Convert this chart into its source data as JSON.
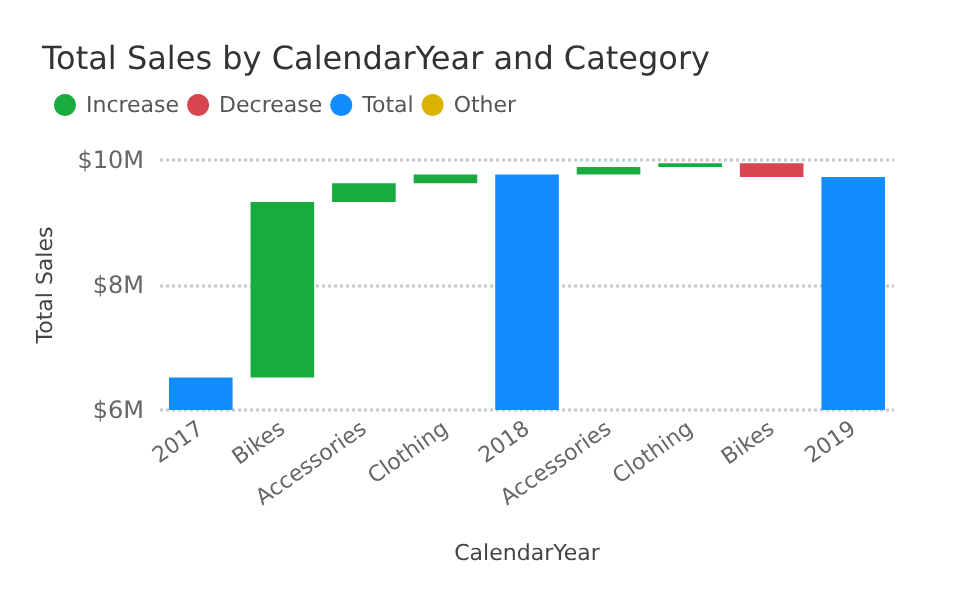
{
  "chart_data": {
    "type": "bar",
    "title": "Total Sales by CalendarYear and Category",
    "xlabel": "CalendarYear",
    "ylabel": "Total Sales",
    "categories": [
      "2017",
      "Bikes",
      "Accessories",
      "Clothing",
      "2018",
      "Accessories",
      "Clothing",
      "Bikes",
      "2019"
    ],
    "series": [
      {
        "name": "Increase",
        "color": "#1aab40",
        "values": [
          null,
          2.81,
          0.3,
          0.14,
          null,
          0.12,
          0.06,
          null,
          null
        ],
        "base": [
          null,
          6.52,
          9.33,
          9.63,
          null,
          9.77,
          9.89,
          null,
          null
        ]
      },
      {
        "name": "Decrease",
        "color": "#d64550",
        "values": [
          null,
          null,
          null,
          null,
          null,
          null,
          null,
          -0.22,
          null
        ],
        "base": [
          null,
          null,
          null,
          null,
          null,
          null,
          null,
          9.95,
          null
        ]
      },
      {
        "name": "Total",
        "color": "#118dff",
        "values": [
          6.52,
          null,
          null,
          null,
          9.77,
          null,
          null,
          null,
          9.73
        ]
      },
      {
        "name": "Other",
        "color": "#d9b300",
        "values": [
          null,
          null,
          null,
          null,
          null,
          null,
          null,
          null,
          null
        ]
      }
    ],
    "ylim": [
      6,
      10
    ],
    "yticks": [
      {
        "value": 6,
        "label": "$6M"
      },
      {
        "value": 8,
        "label": "$8M"
      },
      {
        "value": 10,
        "label": "$10M"
      }
    ],
    "grid": "y",
    "legend": "top left"
  }
}
